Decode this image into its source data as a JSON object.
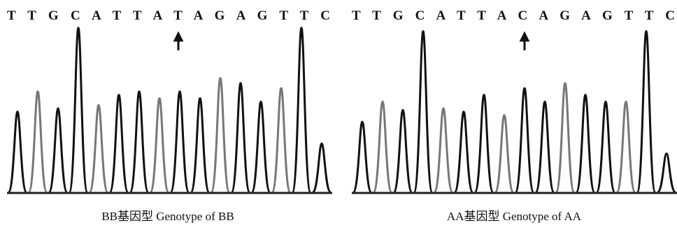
{
  "panels": [
    {
      "sequence": "T T G C A T T A T A G A G T T C",
      "caption": "BB基因型  Genotype of BB",
      "peaks": [
        48,
        60,
        50,
        98,
        52,
        58,
        60,
        56,
        60,
        56,
        68,
        65,
        54,
        62,
        98,
        29
      ]
    },
    {
      "sequence": "T T G C A T T A C A G A G T T C",
      "caption": "AA基因型  Genotype of AA",
      "peaks": [
        42,
        54,
        49,
        96,
        50,
        48,
        58,
        46,
        62,
        54,
        65,
        58,
        54,
        54,
        96,
        23
      ]
    }
  ]
}
